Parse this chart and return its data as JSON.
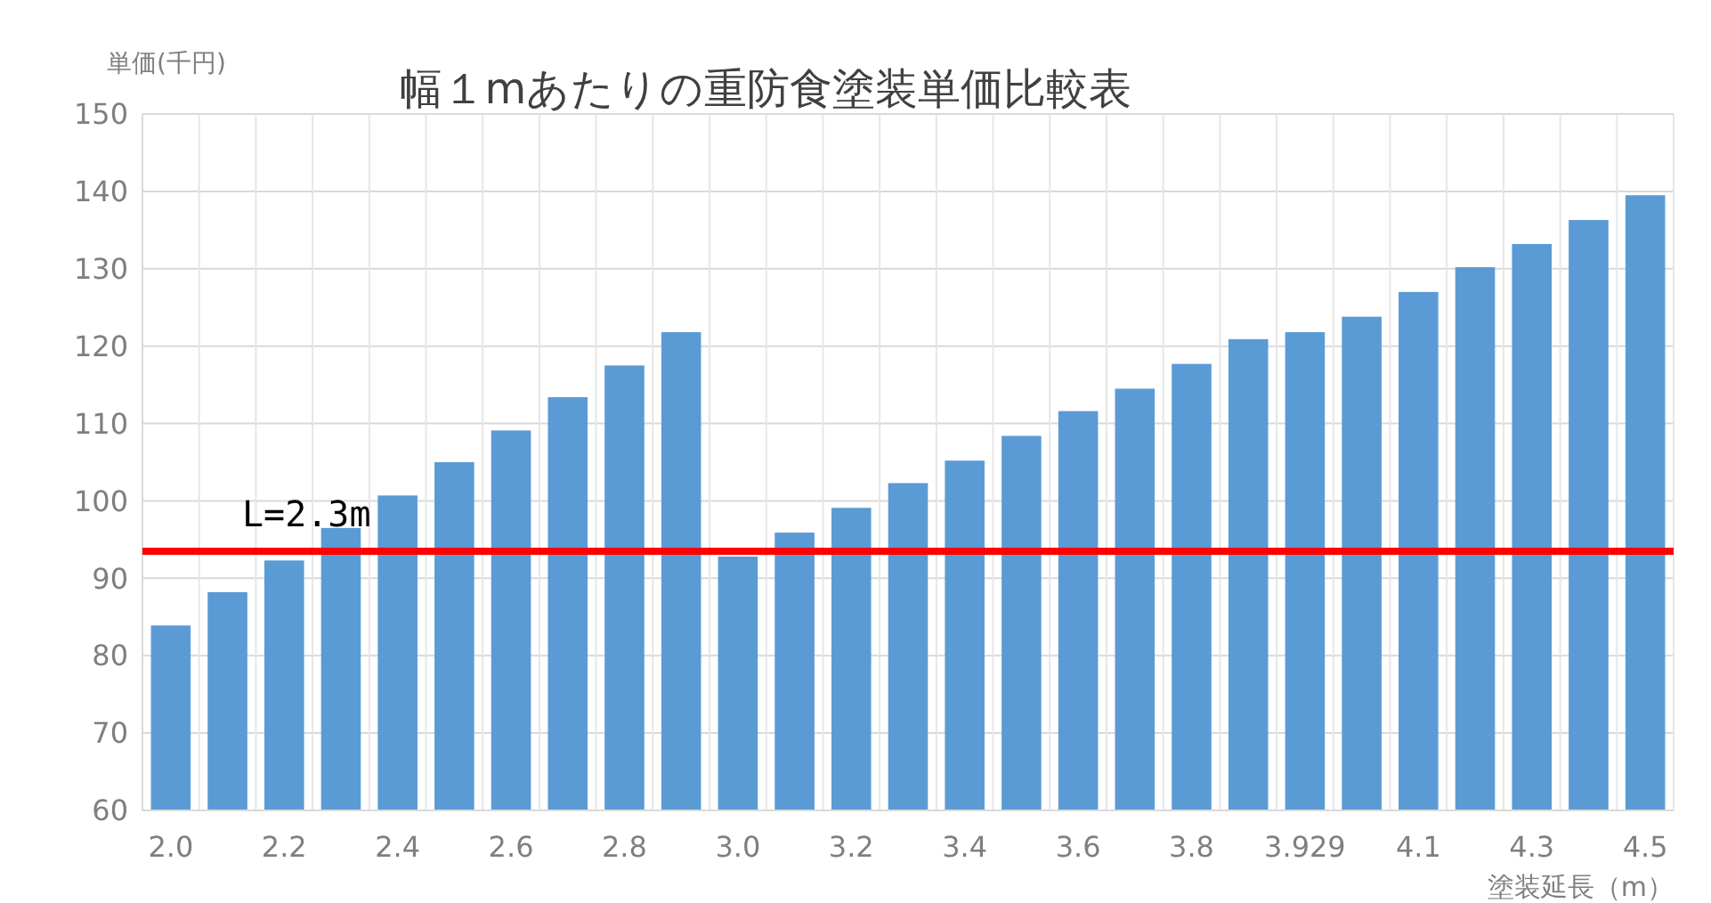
{
  "chart_data": {
    "type": "bar",
    "title": "幅１mあたりの重防食塗装単価比較表",
    "ylabel": "単価(千円)",
    "xlabel": "塗装延長（m）",
    "categories": [
      "2.0",
      null,
      "2.2",
      null,
      "2.4",
      null,
      "2.6",
      null,
      "2.8",
      null,
      "3.0",
      null,
      "3.2",
      null,
      "3.4",
      null,
      "3.6",
      null,
      "3.8",
      null,
      "3.929",
      null,
      "4.1",
      null,
      "4.3",
      null,
      "4.5"
    ],
    "values": [
      83.9,
      88.2,
      92.3,
      96.5,
      100.7,
      105,
      109.1,
      113.4,
      117.5,
      121.8,
      92.8,
      95.9,
      99.1,
      102.3,
      105.2,
      108.4,
      111.6,
      114.5,
      117.7,
      120.9,
      121.8,
      123.8,
      127,
      130.2,
      133.2,
      136.3,
      139.5
    ],
    "color": "#5b9bd5",
    "ylim": [
      60,
      150
    ],
    "yticks": [
      60,
      70,
      80,
      90,
      100,
      110,
      120,
      130,
      140,
      150
    ],
    "grid": true,
    "ref_lines": [
      {
        "axis": "y",
        "value": 93.5,
        "color": "#ff0000"
      }
    ],
    "annotations": [
      "L=2.3m"
    ]
  }
}
